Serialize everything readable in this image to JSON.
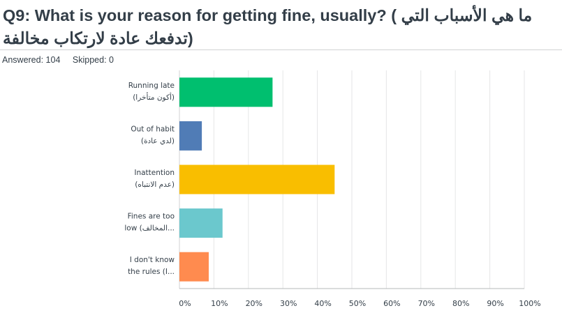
{
  "question": {
    "title": "Q9: What is your reason for getting fine, usually? ( ما هي الأسباب التي تدفعك عادة لارتكاب مخالفة)"
  },
  "stats": {
    "answered_label": "Answered:",
    "answered": "104",
    "skipped_label": "Skipped:",
    "skipped": "0"
  },
  "chart_data": {
    "type": "bar",
    "orientation": "horizontal",
    "categories": [
      [
        "Running late",
        "(أكون متأخرا)"
      ],
      [
        "Out of habit",
        "(لدي عادة)"
      ],
      [
        "Inattention",
        "(عدم الانتباه)"
      ],
      [
        "Fines are too",
        "low (المخالف..."
      ],
      [
        "I don't know",
        "the rules (I..."
      ]
    ],
    "values": [
      27,
      6.5,
      45,
      12.5,
      8.5
    ],
    "colors": [
      "#00bf6f",
      "#507cb6",
      "#f9be00",
      "#6bc8cd",
      "#ff8b4f"
    ],
    "x_ticks": [
      "0%",
      "10%",
      "20%",
      "30%",
      "40%",
      "50%",
      "60%",
      "70%",
      "80%",
      "90%",
      "100%"
    ],
    "xlim": [
      0,
      100
    ],
    "grid": true,
    "title": "",
    "xlabel": "",
    "ylabel": ""
  }
}
